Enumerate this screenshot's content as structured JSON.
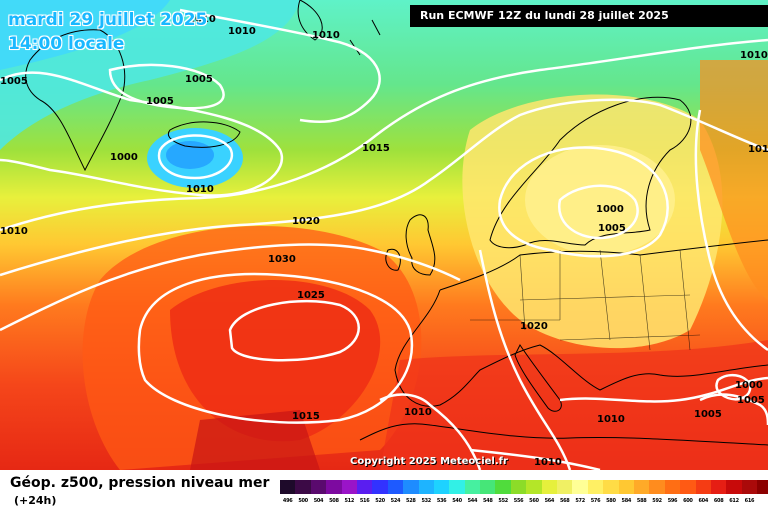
{
  "header": {
    "date": "mardi 29 juillet 2025",
    "time": "14:00 locale",
    "run": "Run ECMWF 12Z du lundi 28 juillet 2025"
  },
  "map": {
    "copyright": "Copyright 2025 Meteociel.fr",
    "isobar_labels": [
      {
        "value": "1010",
        "where": "top-left Greenland"
      },
      {
        "value": "1010",
        "where": "north Atlantic top"
      },
      {
        "value": "1005",
        "where": "far left edge"
      },
      {
        "value": "1010",
        "where": "Greenland sea"
      },
      {
        "value": "1005",
        "where": "south Greenland"
      },
      {
        "value": "1005",
        "where": "Greenland south tip"
      },
      {
        "value": "1000",
        "where": "low south of Iceland"
      },
      {
        "value": "1010",
        "where": "east of Iceland"
      },
      {
        "value": "1015",
        "where": "mid Atlantic"
      },
      {
        "value": "1010",
        "where": "left edge mid"
      },
      {
        "value": "1020",
        "where": "Atlantic"
      },
      {
        "value": "1030",
        "where": "Azores high centre"
      },
      {
        "value": "1025",
        "where": "south of Azores high"
      },
      {
        "value": "1015",
        "where": "Iberia"
      },
      {
        "value": "1010",
        "where": "north Africa"
      },
      {
        "value": "1000",
        "where": "low over Baltic"
      },
      {
        "value": "1005",
        "where": "Baltic ring"
      },
      {
        "value": "1020",
        "where": "central Europe"
      },
      {
        "value": "1010",
        "where": "top right"
      },
      {
        "value": "1015",
        "where": "Russia"
      },
      {
        "value": "1010",
        "where": "Mediterranean"
      },
      {
        "value": "1005",
        "where": "Greece"
      },
      {
        "value": "1000",
        "where": "Turkey"
      },
      {
        "value": "1005",
        "where": "east Turkey"
      },
      {
        "value": "1010",
        "where": "far bottom right"
      }
    ]
  },
  "legend": {
    "title": "Géop. z500, pression niveau mer",
    "subtitle": "(+24h)",
    "scale_colors": [
      "#1e0a2a",
      "#3c0a46",
      "#5a0a6e",
      "#7d0aa0",
      "#9a14c8",
      "#5a1ef0",
      "#3232ff",
      "#1e5aff",
      "#1e8cff",
      "#1eb4ff",
      "#1ed2ff",
      "#32f0e6",
      "#46f0a0",
      "#46e678",
      "#50dc3c",
      "#8cdc28",
      "#b4e628",
      "#e6f03c",
      "#f0f064",
      "#ffff96",
      "#fff064",
      "#ffdc46",
      "#ffc832",
      "#ffaa28",
      "#ff8c1e",
      "#ff6e14",
      "#ff5a14",
      "#f53c14",
      "#e61e14",
      "#c80a0a",
      "#aa0a0a",
      "#8c0000",
      "#6e0000",
      "#500000",
      "#320000",
      "#0a0000"
    ],
    "scale_labels": [
      "496",
      "500",
      "504",
      "508",
      "512",
      "516",
      "520",
      "524",
      "528",
      "532",
      "536",
      "540",
      "544",
      "548",
      "552",
      "556",
      "560",
      "564",
      "568",
      "572",
      "576",
      "580",
      "584",
      "588",
      "592",
      "596",
      "600",
      "604",
      "608",
      "612",
      "616"
    ]
  }
}
